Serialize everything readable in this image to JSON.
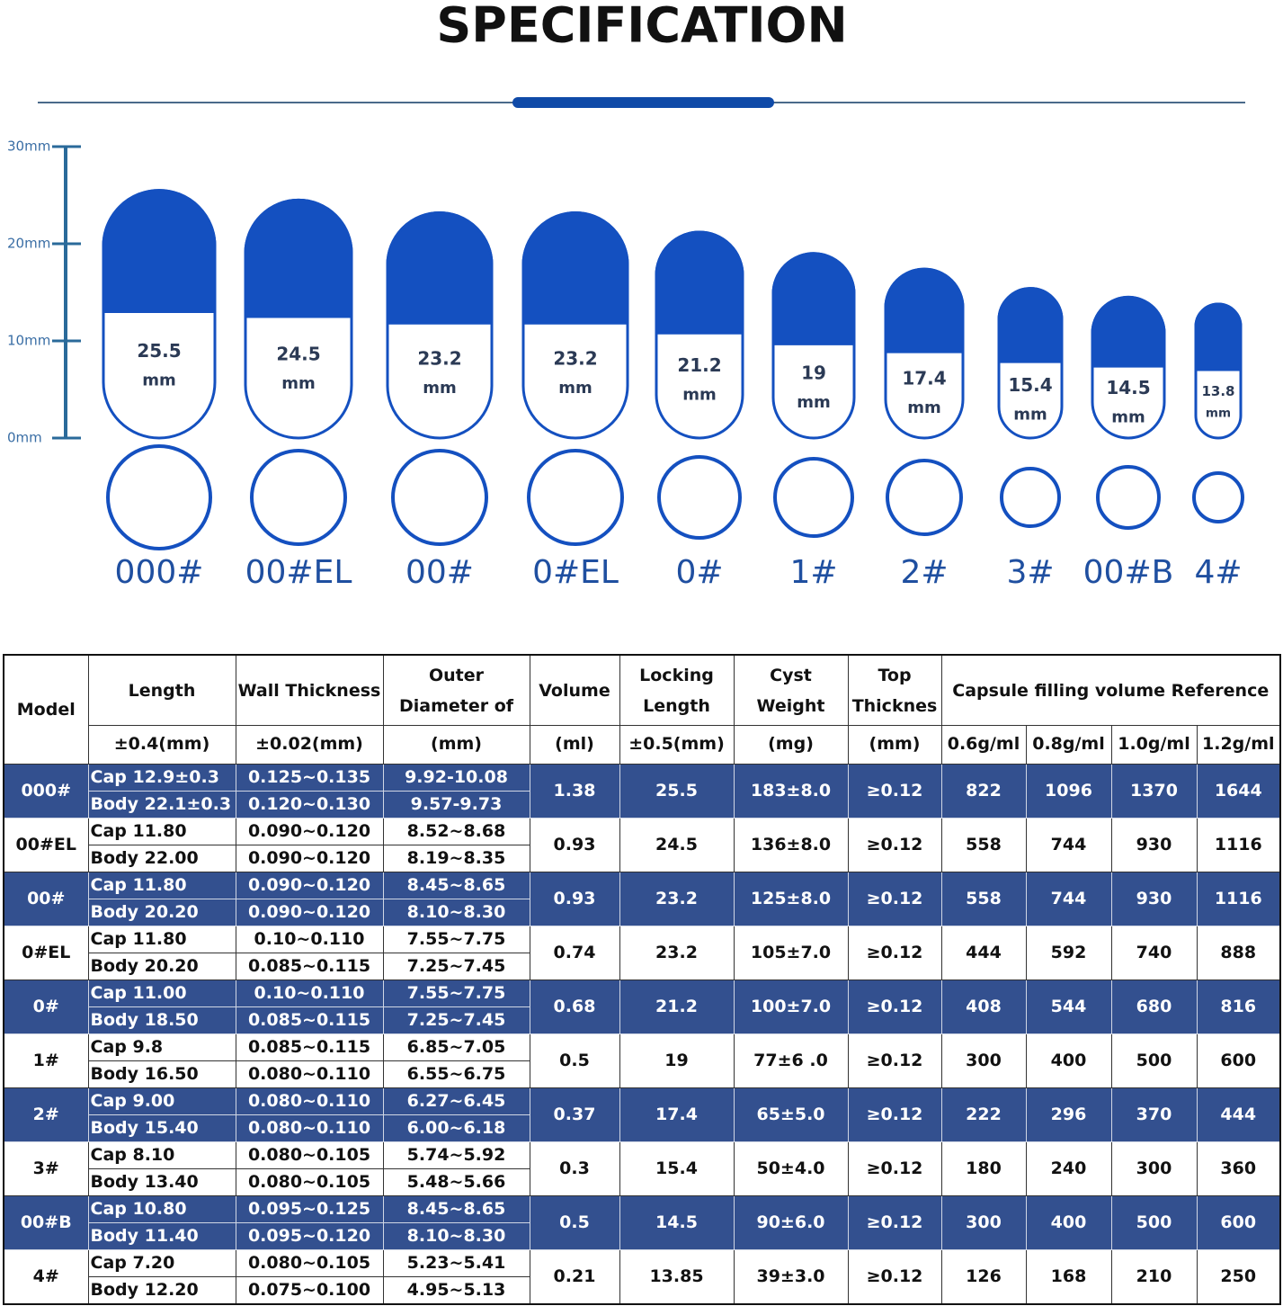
{
  "header": {
    "title": "SPECIFICATION"
  },
  "scale": [
    {
      "value": 30,
      "label": "30mm"
    },
    {
      "value": 20,
      "label": "20mm"
    },
    {
      "value": 10,
      "label": "10mm"
    },
    {
      "value": 0,
      "label": "0mm"
    }
  ],
  "capsules": [
    {
      "length": 25.5,
      "unit": "mm",
      "model": "000#"
    },
    {
      "length": 24.5,
      "unit": "mm",
      "model": "00#EL"
    },
    {
      "length": 23.2,
      "unit": "mm",
      "model": "00#"
    },
    {
      "length": 23.2,
      "unit": "mm",
      "model": "0#EL"
    },
    {
      "length": 21.2,
      "unit": "mm",
      "model": "0#"
    },
    {
      "length": 19,
      "unit": "mm",
      "model": "1#"
    },
    {
      "length": 17.4,
      "unit": "mm",
      "model": "2#"
    },
    {
      "length": 15.4,
      "unit": "mm",
      "model": "3#"
    },
    {
      "length": 14.5,
      "unit": "mm",
      "model": "00#B"
    },
    {
      "length": 13.8,
      "unit": "mm",
      "model": "4#"
    }
  ],
  "table": {
    "columns": [
      "Model",
      "Length",
      "Wall Thickness",
      "Outer Diameter of",
      "Volume",
      "Locking Length",
      "Cyst Weight",
      "Top Thicknes",
      "Capsule filling volume Reference"
    ],
    "units": [
      "±0.4(mm)",
      "±0.02(mm)",
      "(mm)",
      "(ml)",
      "±0.5(mm)",
      "(mg)",
      "(mm)",
      "0.6g/ml",
      "0.8g/ml",
      "1.0g/ml",
      "1.2g/ml"
    ],
    "groups": [
      {
        "model": "000#",
        "cap": [
          "Cap 12.9±0.3",
          "0.125~0.135",
          "9.92-10.08"
        ],
        "body": [
          "Body 22.1±0.3",
          "0.120~0.130",
          "9.57-9.73"
        ],
        "values": [
          "1.38",
          "25.5",
          "183±8.0",
          "≥0.12",
          "822",
          "1096",
          "1370",
          "1644"
        ]
      },
      {
        "model": "00#EL",
        "cap": [
          "Cap 11.80",
          "0.090~0.120",
          "8.52~8.68"
        ],
        "body": [
          "Body 22.00",
          "0.090~0.120",
          "8.19~8.35"
        ],
        "values": [
          "0.93",
          "24.5",
          "136±8.0",
          "≥0.12",
          "558",
          "744",
          "930",
          "1116"
        ]
      },
      {
        "model": "00#",
        "cap": [
          "Cap 11.80",
          "0.090~0.120",
          "8.45~8.65"
        ],
        "body": [
          "Body 20.20",
          "0.090~0.120",
          "8.10~8.30"
        ],
        "values": [
          "0.93",
          "23.2",
          "125±8.0",
          "≥0.12",
          "558",
          "744",
          "930",
          "1116"
        ]
      },
      {
        "model": "0#EL",
        "cap": [
          "Cap 11.80",
          "0.10~0.110",
          "7.55~7.75"
        ],
        "body": [
          "Body 20.20",
          "0.085~0.115",
          "7.25~7.45"
        ],
        "values": [
          "0.74",
          "23.2",
          "105±7.0",
          "≥0.12",
          "444",
          "592",
          "740",
          "888"
        ]
      },
      {
        "model": "0#",
        "cap": [
          "Cap 11.00",
          "0.10~0.110",
          "7.55~7.75"
        ],
        "body": [
          "Body 18.50",
          "0.085~0.115",
          "7.25~7.45"
        ],
        "values": [
          "0.68",
          "21.2",
          "100±7.0",
          "≥0.12",
          "408",
          "544",
          "680",
          "816"
        ]
      },
      {
        "model": "1#",
        "cap": [
          "Cap 9.8",
          "0.085~0.115",
          "6.85~7.05"
        ],
        "body": [
          "Body 16.50",
          "0.080~0.110",
          "6.55~6.75"
        ],
        "values": [
          "0.5",
          "19",
          "77±6 .0",
          "≥0.12",
          "300",
          "400",
          "500",
          "600"
        ]
      },
      {
        "model": "2#",
        "cap": [
          "Cap 9.00",
          "0.080~0.110",
          "6.27~6.45"
        ],
        "body": [
          "Body 15.40",
          "0.080~0.110",
          "6.00~6.18"
        ],
        "values": [
          "0.37",
          "17.4",
          "65±5.0",
          "≥0.12",
          "222",
          "296",
          "370",
          "444"
        ]
      },
      {
        "model": "3#",
        "cap": [
          "Cap 8.10",
          "0.080~0.105",
          "5.74~5.92"
        ],
        "body": [
          "Body 13.40",
          "0.080~0.105",
          "5.48~5.66"
        ],
        "values": [
          "0.3",
          "15.4",
          "50±4.0",
          "≥0.12",
          "180",
          "240",
          "300",
          "360"
        ]
      },
      {
        "model": "00#B",
        "cap": [
          "Cap 10.80",
          "0.095~0.125",
          "8.45~8.65"
        ],
        "body": [
          "Body 11.40",
          "0.095~0.120",
          "8.10~8.30"
        ],
        "values": [
          "0.5",
          "14.5",
          "90±6.0",
          "≥0.12",
          "300",
          "400",
          "500",
          "600"
        ]
      },
      {
        "model": "4#",
        "cap": [
          "Cap 7.20",
          "0.080~0.105",
          "5.23~5.41"
        ],
        "body": [
          "Body 12.20",
          "0.075~0.100",
          "4.95~5.13"
        ],
        "values": [
          "0.21",
          "13.85",
          "39±3.0",
          "≥0.12",
          "126",
          "168",
          "210",
          "250"
        ]
      }
    ]
  }
}
